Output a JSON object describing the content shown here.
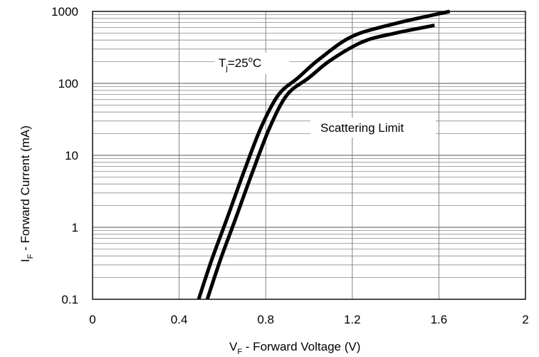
{
  "chart_data": {
    "type": "line",
    "xlabel": {
      "prefix": "V",
      "sub": "F",
      "rest": " - Forward Voltage (V)"
    },
    "ylabel": {
      "prefix": "I",
      "sub": "F",
      "rest": " - Forward Current (mA)"
    },
    "xlim": [
      0,
      2
    ],
    "ylim": [
      0.1,
      1000
    ],
    "yscale": "log",
    "x_ticks": [
      0,
      0.4,
      0.8,
      1.2,
      1.6,
      2
    ],
    "x_tick_labels": [
      "0",
      "0.4",
      "0.8",
      "1.2",
      "1.6",
      "2"
    ],
    "y_ticks": [
      0.1,
      1,
      10,
      100,
      1000
    ],
    "y_tick_labels": [
      "0.1",
      "1",
      "10",
      "100",
      "1000"
    ],
    "grid": true,
    "series": [
      {
        "values_x": [
          0.49,
          0.55,
          0.62,
          0.7,
          0.78,
          0.86,
          0.95,
          1.05,
          1.2,
          1.4,
          1.65
        ],
        "values_y": [
          0.1,
          0.35,
          1.3,
          6,
          25,
          70,
          120,
          220,
          450,
          680,
          1000
        ]
      },
      {
        "values_x": [
          0.53,
          0.59,
          0.66,
          0.74,
          0.82,
          0.9,
          1.0,
          1.1,
          1.25,
          1.4,
          1.58
        ],
        "values_y": [
          0.1,
          0.35,
          1.3,
          6,
          25,
          70,
          120,
          210,
          380,
          500,
          640
        ]
      }
    ],
    "annotations": {
      "temp": {
        "prefix": "T",
        "sub": "j",
        "mid": "=25",
        "sup": "o",
        "rest": "C"
      },
      "scatter_label": "Scattering Limit"
    }
  }
}
